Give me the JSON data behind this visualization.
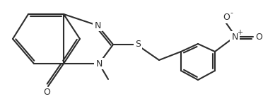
{
  "bg_color": "#ffffff",
  "line_color": "#2d2d2d",
  "lw": 1.5,
  "figw": 3.72,
  "figh": 1.57,
  "dpi": 100,
  "atoms": {
    "N_label": "N",
    "N2_label": "N",
    "S_label": "S",
    "O_label": "O",
    "Nplus_label": "N",
    "Om_label": "O"
  }
}
